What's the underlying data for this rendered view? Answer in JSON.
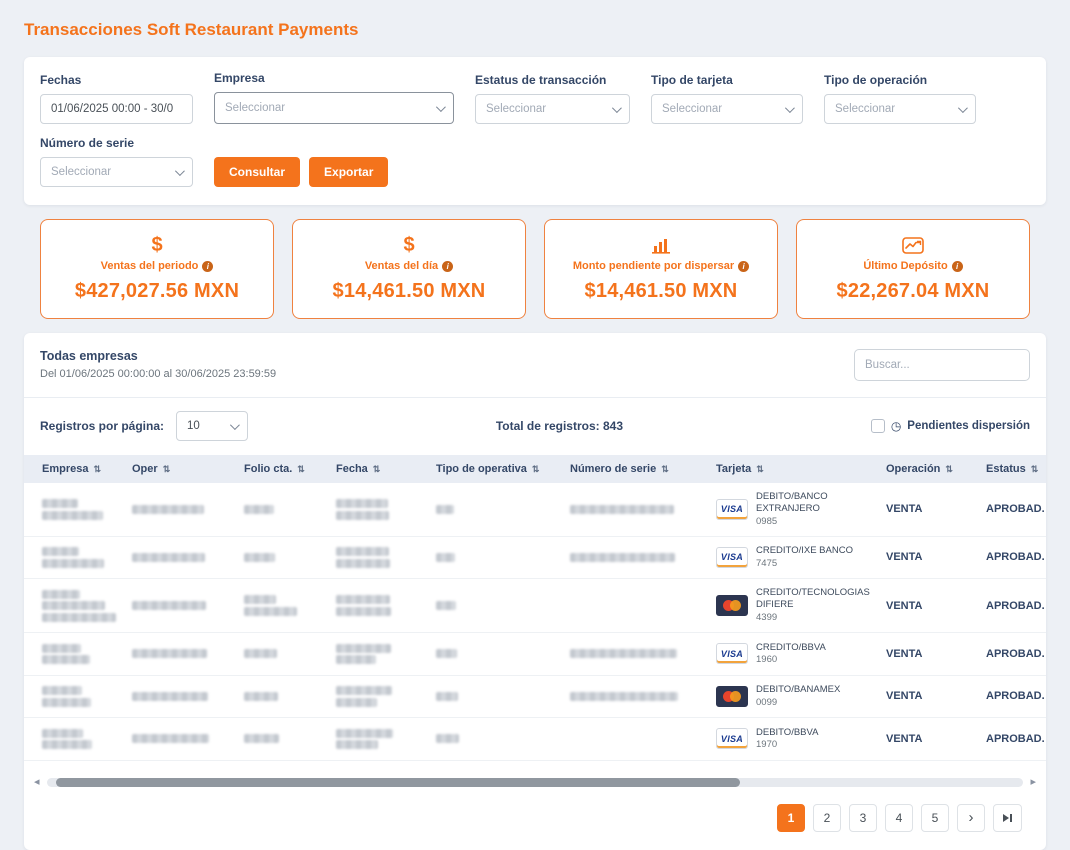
{
  "colors": {
    "accent_orange": "#f4731c",
    "dark_navy": "#344767"
  },
  "page": {
    "title": "Transacciones Soft Restaurant Payments"
  },
  "filters": {
    "fechas": {
      "label": "Fechas",
      "value": "01/06/2025 00:00 - 30/0"
    },
    "empresa": {
      "label": "Empresa",
      "placeholder": "Seleccionar"
    },
    "estatus_transaccion": {
      "label": "Estatus de transacción",
      "placeholder": "Seleccionar"
    },
    "tipo_tarjeta": {
      "label": "Tipo de tarjeta",
      "placeholder": "Seleccionar"
    },
    "tipo_operacion": {
      "label": "Tipo de operación",
      "placeholder": "Seleccionar"
    },
    "numero_serie": {
      "label": "Número de serie",
      "placeholder": "Seleccionar"
    },
    "consultar_label": "Consultar",
    "exportar_label": "Exportar"
  },
  "stats": [
    {
      "icon": "dollar-icon",
      "label": "Ventas del periodo",
      "value": "$427,027.56 MXN"
    },
    {
      "icon": "dollar-icon",
      "label": "Ventas del día",
      "value": "$14,461.50 MXN"
    },
    {
      "icon": "bar-chart-icon",
      "label": "Monto pendiente por dispersar",
      "value": "$14,461.50 MXN"
    },
    {
      "icon": "line-chart-icon",
      "label": "Último Depósito",
      "value": "$22,267.04 MXN"
    }
  ],
  "table_card": {
    "title": "Todas empresas",
    "subtitle": "Del 01/06/2025 00:00:00 al 30/06/2025 23:59:59",
    "search_placeholder": "Buscar...",
    "per_page_label": "Registros por página:",
    "per_page_value": "10",
    "total_records_label": "Total de registros:",
    "total_records": "843",
    "pending_dispersion_label": "Pendientes dispersión",
    "columns": [
      "Empresa",
      "Oper",
      "Folio cta.",
      "Fecha",
      "Tipo de operativa",
      "Número de serie",
      "Tarjeta",
      "Operación",
      "Estatus"
    ],
    "rows": [
      {
        "redacted": {
          "empresa": 2,
          "oper": 1,
          "folio": 1,
          "fecha": 2,
          "tipo_operativa": 1,
          "numero_serie": 1
        },
        "tarjeta": {
          "brand": "visa",
          "brand_label": "VISA",
          "name": "DEBITO/BANCO EXTRANJERO",
          "last4": "0985"
        },
        "operacion": "VENTA",
        "estatus": "APROBAD."
      },
      {
        "redacted": {
          "empresa": 2,
          "oper": 1,
          "folio": 1,
          "fecha": 2,
          "tipo_operativa": 1,
          "numero_serie": 1
        },
        "tarjeta": {
          "brand": "visa",
          "brand_label": "VISA",
          "name": "CREDITO/IXE BANCO",
          "last4": "7475"
        },
        "operacion": "VENTA",
        "estatus": "APROBAD."
      },
      {
        "redacted": {
          "empresa": 3,
          "oper": 1,
          "folio": 2,
          "fecha": 2,
          "tipo_operativa": 1,
          "numero_serie": 0
        },
        "tarjeta": {
          "brand": "mastercard",
          "brand_label": "MasterCard",
          "name": "CREDITO/TECNOLOGIAS DIFIERE",
          "last4": "4399"
        },
        "operacion": "VENTA",
        "estatus": "APROBAD."
      },
      {
        "redacted": {
          "empresa": 2,
          "oper": 1,
          "folio": 1,
          "fecha": 2,
          "tipo_operativa": 1,
          "numero_serie": 1
        },
        "tarjeta": {
          "brand": "visa",
          "brand_label": "VISA",
          "name": "CREDITO/BBVA",
          "last4": "1960"
        },
        "operacion": "VENTA",
        "estatus": "APROBAD."
      },
      {
        "redacted": {
          "empresa": 2,
          "oper": 1,
          "folio": 1,
          "fecha": 2,
          "tipo_operativa": 1,
          "numero_serie": 1
        },
        "tarjeta": {
          "brand": "mastercard",
          "brand_label": "MasterCard",
          "name": "DEBITO/BANAMEX",
          "last4": "0099"
        },
        "operacion": "VENTA",
        "estatus": "APROBAD."
      },
      {
        "redacted": {
          "empresa": 2,
          "oper": 1,
          "folio": 1,
          "fecha": 2,
          "tipo_operativa": 1,
          "numero_serie": 0
        },
        "tarjeta": {
          "brand": "visa",
          "brand_label": "VISA",
          "name": "DEBITO/BBVA",
          "last4": "1970"
        },
        "operacion": "VENTA",
        "estatus": "APROBAD."
      }
    ]
  },
  "pagination": {
    "pages": [
      "1",
      "2",
      "3",
      "4",
      "5"
    ],
    "active_page": "1"
  }
}
